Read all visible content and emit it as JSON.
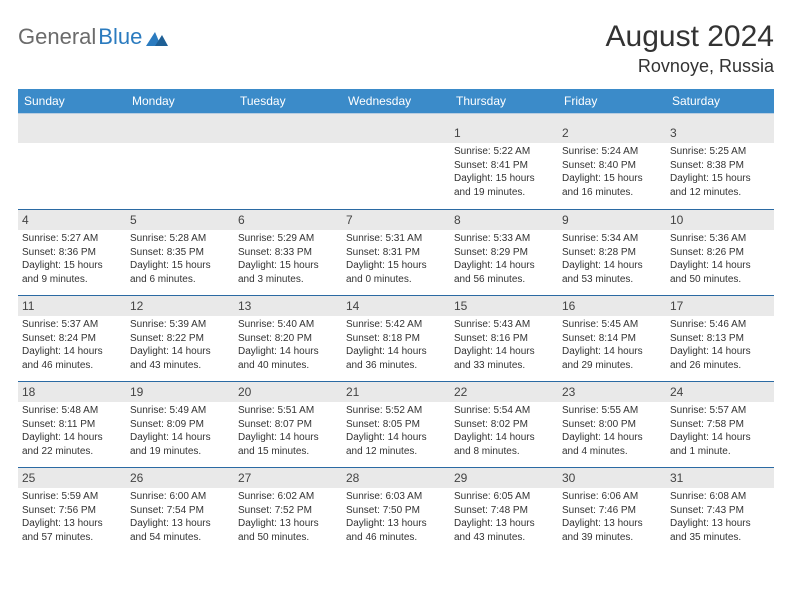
{
  "logo": {
    "text1": "General",
    "text2": "Blue"
  },
  "title": "August 2024",
  "location": "Rovnoye, Russia",
  "colors": {
    "header_bg": "#3b8bc9",
    "header_text": "#ffffff",
    "daybar_bg": "#e9e9e9",
    "row_border": "#2b6aa3",
    "logo_gray": "#6b6b6b",
    "logo_blue": "#2b7bbf"
  },
  "day_labels": [
    "Sunday",
    "Monday",
    "Tuesday",
    "Wednesday",
    "Thursday",
    "Friday",
    "Saturday"
  ],
  "weeks": [
    [
      null,
      null,
      null,
      null,
      {
        "n": "1",
        "sr": "Sunrise: 5:22 AM",
        "ss": "Sunset: 8:41 PM",
        "dl1": "Daylight: 15 hours",
        "dl2": "and 19 minutes."
      },
      {
        "n": "2",
        "sr": "Sunrise: 5:24 AM",
        "ss": "Sunset: 8:40 PM",
        "dl1": "Daylight: 15 hours",
        "dl2": "and 16 minutes."
      },
      {
        "n": "3",
        "sr": "Sunrise: 5:25 AM",
        "ss": "Sunset: 8:38 PM",
        "dl1": "Daylight: 15 hours",
        "dl2": "and 12 minutes."
      }
    ],
    [
      {
        "n": "4",
        "sr": "Sunrise: 5:27 AM",
        "ss": "Sunset: 8:36 PM",
        "dl1": "Daylight: 15 hours",
        "dl2": "and 9 minutes."
      },
      {
        "n": "5",
        "sr": "Sunrise: 5:28 AM",
        "ss": "Sunset: 8:35 PM",
        "dl1": "Daylight: 15 hours",
        "dl2": "and 6 minutes."
      },
      {
        "n": "6",
        "sr": "Sunrise: 5:29 AM",
        "ss": "Sunset: 8:33 PM",
        "dl1": "Daylight: 15 hours",
        "dl2": "and 3 minutes."
      },
      {
        "n": "7",
        "sr": "Sunrise: 5:31 AM",
        "ss": "Sunset: 8:31 PM",
        "dl1": "Daylight: 15 hours",
        "dl2": "and 0 minutes."
      },
      {
        "n": "8",
        "sr": "Sunrise: 5:33 AM",
        "ss": "Sunset: 8:29 PM",
        "dl1": "Daylight: 14 hours",
        "dl2": "and 56 minutes."
      },
      {
        "n": "9",
        "sr": "Sunrise: 5:34 AM",
        "ss": "Sunset: 8:28 PM",
        "dl1": "Daylight: 14 hours",
        "dl2": "and 53 minutes."
      },
      {
        "n": "10",
        "sr": "Sunrise: 5:36 AM",
        "ss": "Sunset: 8:26 PM",
        "dl1": "Daylight: 14 hours",
        "dl2": "and 50 minutes."
      }
    ],
    [
      {
        "n": "11",
        "sr": "Sunrise: 5:37 AM",
        "ss": "Sunset: 8:24 PM",
        "dl1": "Daylight: 14 hours",
        "dl2": "and 46 minutes."
      },
      {
        "n": "12",
        "sr": "Sunrise: 5:39 AM",
        "ss": "Sunset: 8:22 PM",
        "dl1": "Daylight: 14 hours",
        "dl2": "and 43 minutes."
      },
      {
        "n": "13",
        "sr": "Sunrise: 5:40 AM",
        "ss": "Sunset: 8:20 PM",
        "dl1": "Daylight: 14 hours",
        "dl2": "and 40 minutes."
      },
      {
        "n": "14",
        "sr": "Sunrise: 5:42 AM",
        "ss": "Sunset: 8:18 PM",
        "dl1": "Daylight: 14 hours",
        "dl2": "and 36 minutes."
      },
      {
        "n": "15",
        "sr": "Sunrise: 5:43 AM",
        "ss": "Sunset: 8:16 PM",
        "dl1": "Daylight: 14 hours",
        "dl2": "and 33 minutes."
      },
      {
        "n": "16",
        "sr": "Sunrise: 5:45 AM",
        "ss": "Sunset: 8:14 PM",
        "dl1": "Daylight: 14 hours",
        "dl2": "and 29 minutes."
      },
      {
        "n": "17",
        "sr": "Sunrise: 5:46 AM",
        "ss": "Sunset: 8:13 PM",
        "dl1": "Daylight: 14 hours",
        "dl2": "and 26 minutes."
      }
    ],
    [
      {
        "n": "18",
        "sr": "Sunrise: 5:48 AM",
        "ss": "Sunset: 8:11 PM",
        "dl1": "Daylight: 14 hours",
        "dl2": "and 22 minutes."
      },
      {
        "n": "19",
        "sr": "Sunrise: 5:49 AM",
        "ss": "Sunset: 8:09 PM",
        "dl1": "Daylight: 14 hours",
        "dl2": "and 19 minutes."
      },
      {
        "n": "20",
        "sr": "Sunrise: 5:51 AM",
        "ss": "Sunset: 8:07 PM",
        "dl1": "Daylight: 14 hours",
        "dl2": "and 15 minutes."
      },
      {
        "n": "21",
        "sr": "Sunrise: 5:52 AM",
        "ss": "Sunset: 8:05 PM",
        "dl1": "Daylight: 14 hours",
        "dl2": "and 12 minutes."
      },
      {
        "n": "22",
        "sr": "Sunrise: 5:54 AM",
        "ss": "Sunset: 8:02 PM",
        "dl1": "Daylight: 14 hours",
        "dl2": "and 8 minutes."
      },
      {
        "n": "23",
        "sr": "Sunrise: 5:55 AM",
        "ss": "Sunset: 8:00 PM",
        "dl1": "Daylight: 14 hours",
        "dl2": "and 4 minutes."
      },
      {
        "n": "24",
        "sr": "Sunrise: 5:57 AM",
        "ss": "Sunset: 7:58 PM",
        "dl1": "Daylight: 14 hours",
        "dl2": "and 1 minute."
      }
    ],
    [
      {
        "n": "25",
        "sr": "Sunrise: 5:59 AM",
        "ss": "Sunset: 7:56 PM",
        "dl1": "Daylight: 13 hours",
        "dl2": "and 57 minutes."
      },
      {
        "n": "26",
        "sr": "Sunrise: 6:00 AM",
        "ss": "Sunset: 7:54 PM",
        "dl1": "Daylight: 13 hours",
        "dl2": "and 54 minutes."
      },
      {
        "n": "27",
        "sr": "Sunrise: 6:02 AM",
        "ss": "Sunset: 7:52 PM",
        "dl1": "Daylight: 13 hours",
        "dl2": "and 50 minutes."
      },
      {
        "n": "28",
        "sr": "Sunrise: 6:03 AM",
        "ss": "Sunset: 7:50 PM",
        "dl1": "Daylight: 13 hours",
        "dl2": "and 46 minutes."
      },
      {
        "n": "29",
        "sr": "Sunrise: 6:05 AM",
        "ss": "Sunset: 7:48 PM",
        "dl1": "Daylight: 13 hours",
        "dl2": "and 43 minutes."
      },
      {
        "n": "30",
        "sr": "Sunrise: 6:06 AM",
        "ss": "Sunset: 7:46 PM",
        "dl1": "Daylight: 13 hours",
        "dl2": "and 39 minutes."
      },
      {
        "n": "31",
        "sr": "Sunrise: 6:08 AM",
        "ss": "Sunset: 7:43 PM",
        "dl1": "Daylight: 13 hours",
        "dl2": "and 35 minutes."
      }
    ]
  ]
}
